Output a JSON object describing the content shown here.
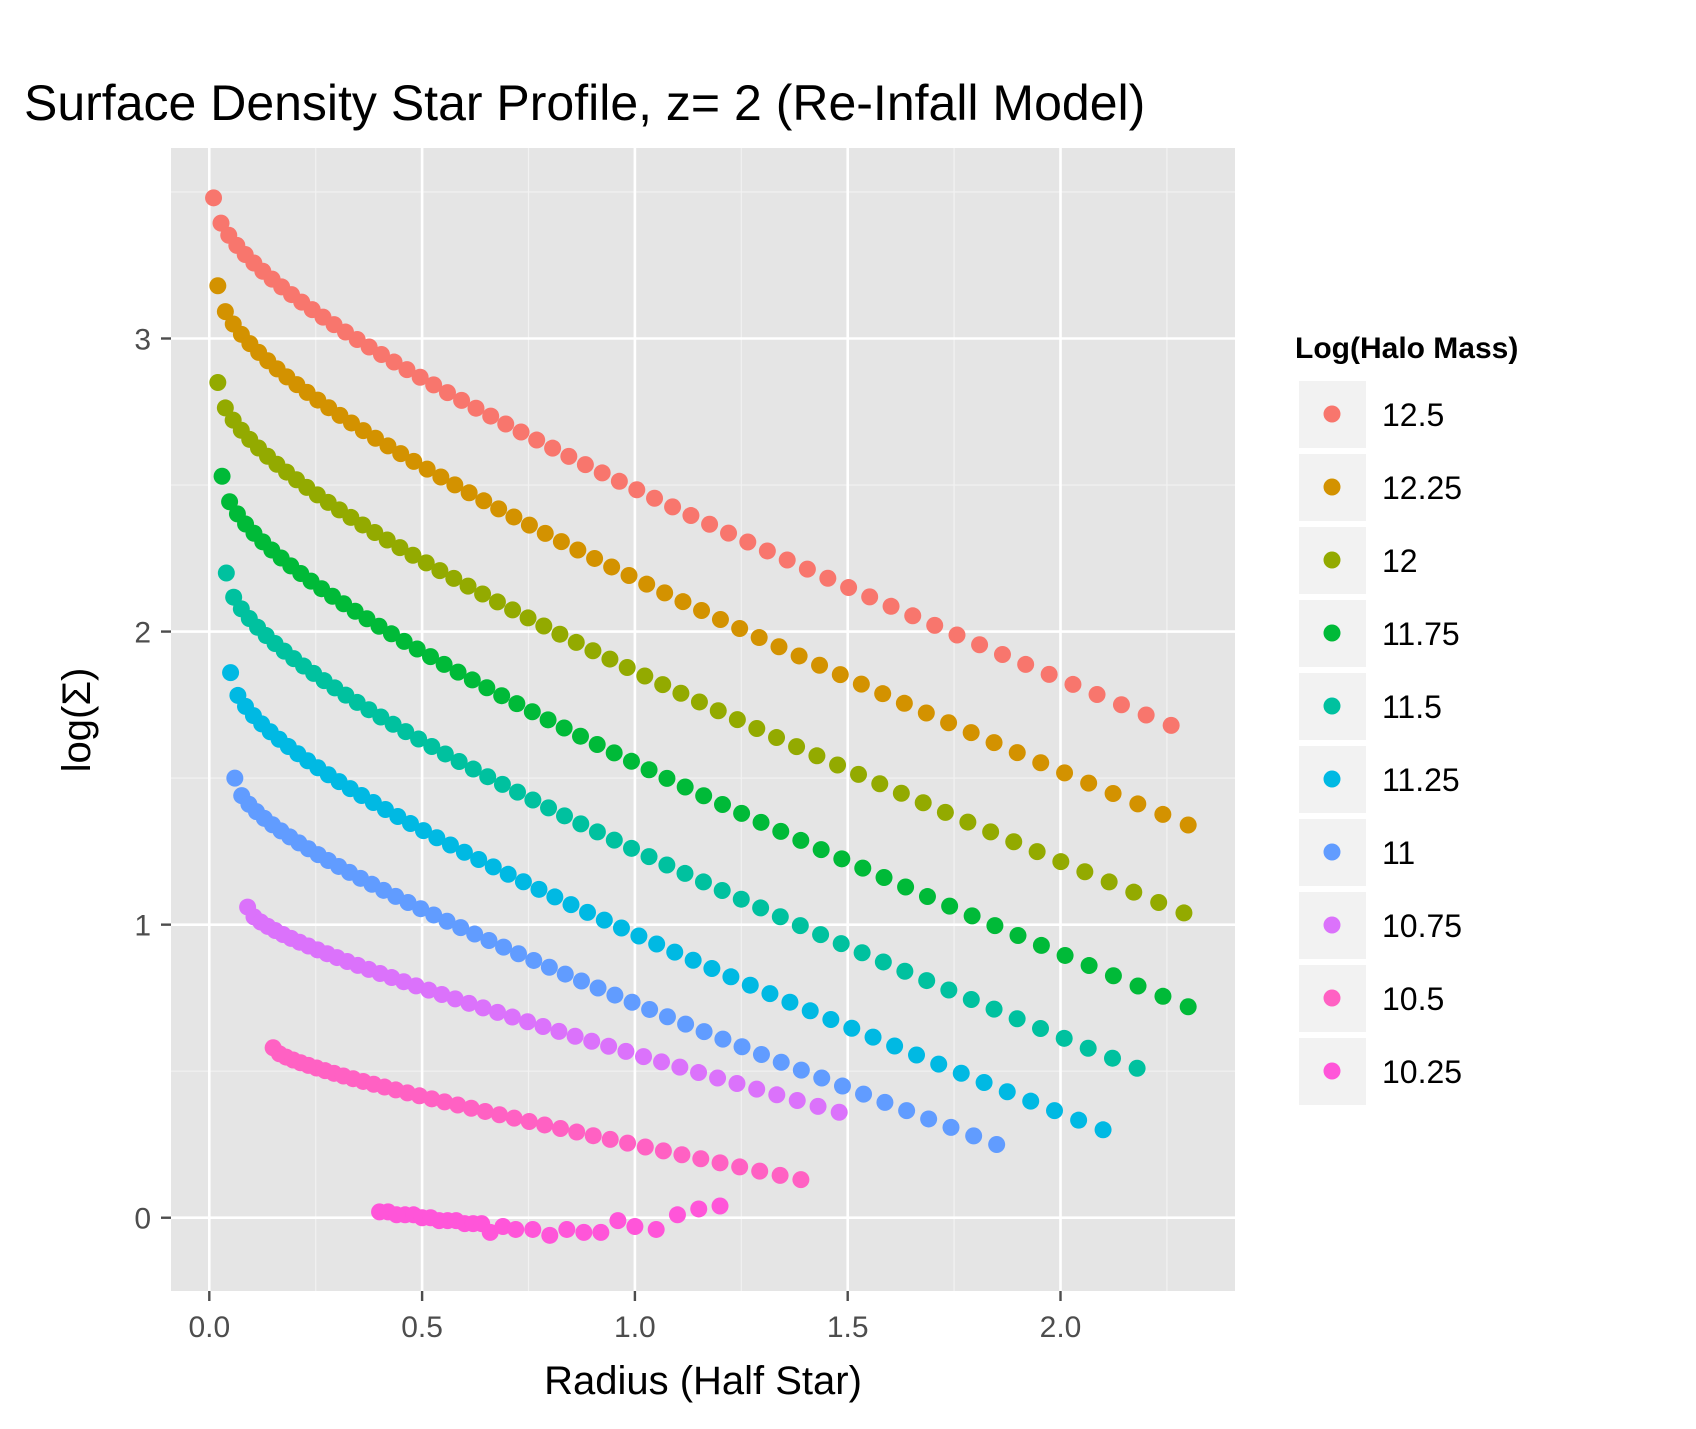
{
  "chart_data": {
    "type": "scatter",
    "title": "Surface Density Star Profile, z= 2 (Re-Infall Model)",
    "xlabel": "Radius (Half Star)",
    "ylabel": "log(Σ)",
    "xlim": [
      -0.09,
      2.41
    ],
    "ylim": [
      -0.25,
      3.65
    ],
    "x_ticks": [
      0.0,
      0.5,
      1.0,
      1.5,
      2.0
    ],
    "x_tick_labels": [
      "0.0",
      "0.5",
      "1.0",
      "1.5",
      "2.0"
    ],
    "y_ticks": [
      0,
      1,
      2,
      3
    ],
    "y_tick_labels": [
      "0",
      "1",
      "2",
      "3"
    ],
    "grid": true,
    "legend_position": "right",
    "legend_title": "Log(Halo Mass)",
    "series": [
      {
        "name": "12.5",
        "color": "#F8766D",
        "x_start": 0.01,
        "x_end": 2.26,
        "y_start": 3.48,
        "y_end": 1.68,
        "count": 60,
        "curvature": 0.5
      },
      {
        "name": "12.25",
        "color": "#D39200",
        "x_start": 0.02,
        "x_end": 2.3,
        "y_start": 3.18,
        "y_end": 1.34,
        "count": 60,
        "curvature": 0.5
      },
      {
        "name": "12",
        "color": "#93AA00",
        "x_start": 0.02,
        "x_end": 2.29,
        "y_start": 2.85,
        "y_end": 1.04,
        "count": 60,
        "curvature": 0.5
      },
      {
        "name": "11.75",
        "color": "#00BA38",
        "x_start": 0.03,
        "x_end": 2.3,
        "y_start": 2.53,
        "y_end": 0.72,
        "count": 60,
        "curvature": 0.5
      },
      {
        "name": "11.5",
        "color": "#00C19F",
        "x_start": 0.04,
        "x_end": 2.18,
        "y_start": 2.2,
        "y_end": 0.51,
        "count": 58,
        "curvature": 0.5
      },
      {
        "name": "11.25",
        "color": "#00B9E3",
        "x_start": 0.05,
        "x_end": 2.1,
        "y_start": 1.86,
        "y_end": 0.3,
        "count": 56,
        "curvature": 0.5
      },
      {
        "name": "11",
        "color": "#619CFF",
        "x_start": 0.06,
        "x_end": 1.85,
        "y_start": 1.5,
        "y_end": 0.25,
        "count": 52,
        "curvature": 0.45
      },
      {
        "name": "10.75",
        "color": "#DB72FB",
        "x_start": 0.09,
        "x_end": 1.48,
        "y_start": 1.06,
        "y_end": 0.36,
        "count": 44,
        "curvature": 0.4
      },
      {
        "name": "10.5",
        "color": "#FF61C3",
        "x_start": 0.15,
        "x_end": 1.39,
        "y_start": 0.58,
        "y_end": 0.13,
        "count": 40,
        "curvature": 0.35
      },
      {
        "name": "10.25",
        "color": "#FF55D9",
        "points": [
          [
            0.4,
            0.02
          ],
          [
            0.42,
            0.02
          ],
          [
            0.44,
            0.01
          ],
          [
            0.46,
            0.01
          ],
          [
            0.48,
            0.01
          ],
          [
            0.5,
            0.0
          ],
          [
            0.52,
            0.0
          ],
          [
            0.54,
            -0.01
          ],
          [
            0.56,
            -0.01
          ],
          [
            0.58,
            -0.01
          ],
          [
            0.6,
            -0.02
          ],
          [
            0.62,
            -0.02
          ],
          [
            0.64,
            -0.02
          ],
          [
            0.66,
            -0.05
          ],
          [
            0.69,
            -0.03
          ],
          [
            0.72,
            -0.04
          ],
          [
            0.76,
            -0.04
          ],
          [
            0.8,
            -0.06
          ],
          [
            0.84,
            -0.04
          ],
          [
            0.88,
            -0.05
          ],
          [
            0.92,
            -0.05
          ],
          [
            0.96,
            -0.01
          ],
          [
            1.0,
            -0.03
          ],
          [
            1.05,
            -0.04
          ],
          [
            1.1,
            0.01
          ],
          [
            1.15,
            0.03
          ],
          [
            1.2,
            0.04
          ]
        ]
      }
    ]
  }
}
